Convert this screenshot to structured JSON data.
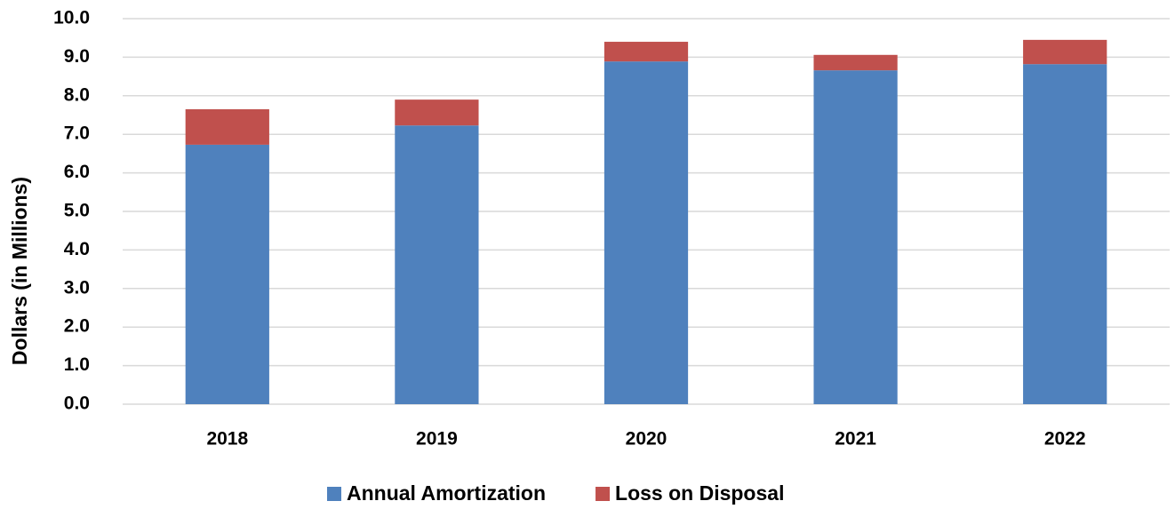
{
  "chart_data": {
    "type": "stacked_bar",
    "y_axis_label": "Dollars (in Millions)",
    "categories": [
      "2018",
      "2019",
      "2020",
      "2021",
      "2022"
    ],
    "series": [
      {
        "name": "Annual Amortization",
        "color": "#4f81bd",
        "values": [
          6.73,
          7.23,
          8.89,
          8.66,
          8.82
        ]
      },
      {
        "name": "Loss on Disposal",
        "color": "#c0504d",
        "values": [
          0.92,
          0.67,
          0.51,
          0.4,
          0.63
        ]
      }
    ],
    "ylim": [
      0,
      10
    ],
    "yticks": [
      {
        "value": 0,
        "label": "0.0"
      },
      {
        "value": 1,
        "label": "1.0"
      },
      {
        "value": 2,
        "label": "2.0"
      },
      {
        "value": 3,
        "label": "3.0"
      },
      {
        "value": 4,
        "label": "4.0"
      },
      {
        "value": 5,
        "label": "5.0"
      },
      {
        "value": 6,
        "label": "6.0"
      },
      {
        "value": 7,
        "label": "7.0"
      },
      {
        "value": 8,
        "label": "8.0"
      },
      {
        "value": 9,
        "label": "9.0"
      },
      {
        "value": 10,
        "label": "10.0"
      }
    ],
    "grid": true,
    "legend": "bottom"
  }
}
